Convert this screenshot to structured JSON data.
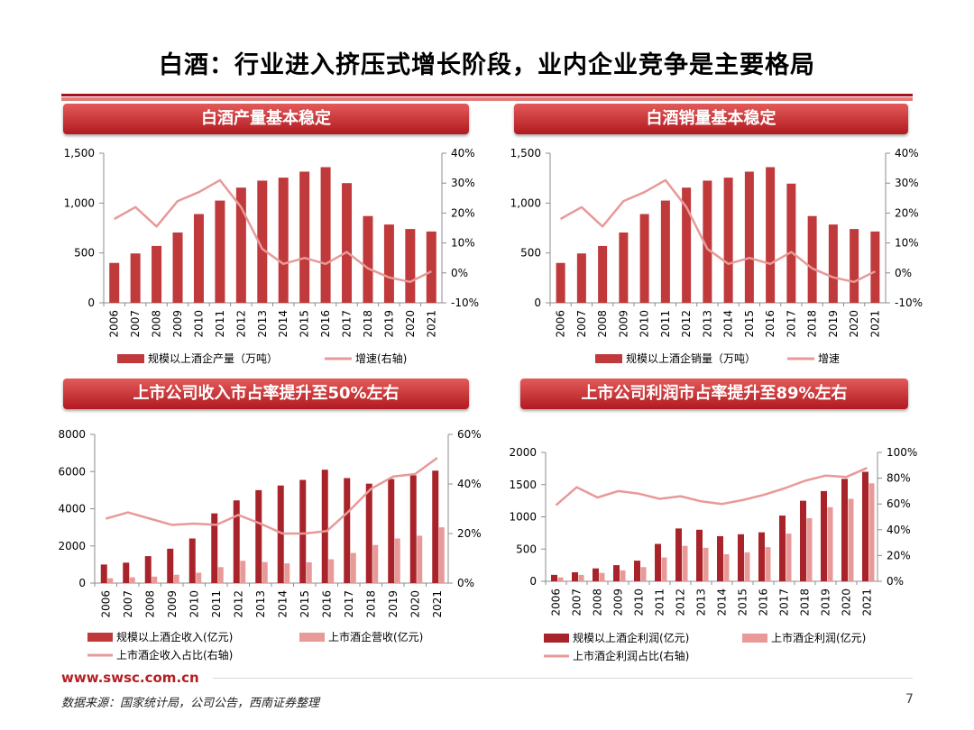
{
  "page": {
    "title": "白酒：行业进入挤压式增长阶段，业内企业竞争是主要格局",
    "footer_url": "www.swsc.com.cn",
    "source": "数据来源：国家统计局，公司公告，西南证券整理",
    "page_number": "7"
  },
  "colors": {
    "bar_dark": "#c0393b",
    "bar_deep": "#a8232a",
    "bar_light": "#e79a98",
    "line": "#e79a98",
    "banner": "#c0282d"
  },
  "banners": {
    "chart1": "白酒产量基本稳定",
    "chart2": "白酒销量基本稳定",
    "chart3": "上市公司收入市占率提升至50%左右",
    "chart4": "上市公司利润市占率提升至89%左右"
  },
  "chart_data": [
    {
      "type": "bar+line",
      "title": "白酒产量基本稳定",
      "categories": [
        "2006",
        "2007",
        "2008",
        "2009",
        "2010",
        "2011",
        "2012",
        "2013",
        "2014",
        "2015",
        "2016",
        "2017",
        "2018",
        "2019",
        "2020",
        "2021"
      ],
      "series": [
        {
          "name": "规模以上酒企产量（万吨）",
          "type": "bar",
          "axis": "left",
          "values": [
            400,
            495,
            570,
            705,
            890,
            1025,
            1155,
            1225,
            1255,
            1315,
            1360,
            1200,
            870,
            785,
            740,
            715
          ]
        },
        {
          "name": "增速(右轴)",
          "type": "line",
          "axis": "right",
          "values": [
            18,
            22,
            15.5,
            24,
            27,
            31,
            22,
            8,
            3,
            5,
            3,
            7,
            1.5,
            -1.5,
            -3,
            0.5
          ]
        }
      ],
      "left_axis": {
        "min": 0,
        "max": 1500,
        "ticks": [
          "0",
          "500",
          "1,000",
          "1,500"
        ],
        "tick_values": [
          0,
          500,
          1000,
          1500
        ]
      },
      "right_axis": {
        "min": -10,
        "max": 40,
        "ticks": [
          "-10%",
          "0%",
          "10%",
          "20%",
          "30%",
          "40%"
        ],
        "tick_values": [
          -10,
          0,
          10,
          20,
          30,
          40
        ]
      },
      "legend": [
        {
          "label": "规模以上酒企产量（万吨）",
          "kind": "bar"
        },
        {
          "label": "增速(右轴)",
          "kind": "line"
        }
      ]
    },
    {
      "type": "bar+line",
      "title": "白酒销量基本稳定",
      "categories": [
        "2006",
        "2007",
        "2008",
        "2009",
        "2010",
        "2011",
        "2012",
        "2013",
        "2014",
        "2015",
        "2016",
        "2017",
        "2018",
        "2019",
        "2020",
        "2021"
      ],
      "series": [
        {
          "name": "规模以上酒企销量（万吨）",
          "type": "bar",
          "axis": "left",
          "values": [
            400,
            495,
            570,
            705,
            890,
            1025,
            1155,
            1225,
            1255,
            1315,
            1360,
            1195,
            870,
            785,
            740,
            715
          ]
        },
        {
          "name": "增速",
          "type": "line",
          "axis": "right",
          "values": [
            18,
            22,
            15.5,
            24,
            27,
            31,
            22,
            8,
            3,
            5,
            3,
            7,
            1.5,
            -1.5,
            -3,
            0.5
          ]
        }
      ],
      "left_axis": {
        "min": 0,
        "max": 1500,
        "ticks": [
          "0",
          "500",
          "1,000",
          "1,500"
        ],
        "tick_values": [
          0,
          500,
          1000,
          1500
        ]
      },
      "right_axis": {
        "min": -10,
        "max": 40,
        "ticks": [
          "-10%",
          "0%",
          "10%",
          "20%",
          "30%",
          "40%"
        ],
        "tick_values": [
          -10,
          0,
          10,
          20,
          30,
          40
        ]
      },
      "legend": [
        {
          "label": "规模以上酒企销量（万吨）",
          "kind": "bar"
        },
        {
          "label": "增速",
          "kind": "line"
        }
      ]
    },
    {
      "type": "bar+line",
      "title": "上市公司收入市占率提升至50%左右",
      "categories": [
        "2006",
        "2007",
        "2008",
        "2009",
        "2010",
        "2011",
        "2012",
        "2013",
        "2014",
        "2015",
        "2016",
        "2017",
        "2018",
        "2019",
        "2020",
        "2021"
      ],
      "series": [
        {
          "name": "规模以上酒企收入(亿元)",
          "type": "bar",
          "axis": "left",
          "values": [
            1000,
            1100,
            1450,
            1850,
            2400,
            3750,
            4450,
            5000,
            5250,
            5550,
            6100,
            5650,
            5350,
            5600,
            5800,
            6050
          ]
        },
        {
          "name": "上市酒企营收(亿元)",
          "type": "bar",
          "axis": "left",
          "values": [
            260,
            310,
            350,
            450,
            560,
            860,
            1200,
            1130,
            1060,
            1120,
            1280,
            1620,
            2050,
            2400,
            2550,
            3000
          ]
        },
        {
          "name": "上市酒企收入占比(右轴)",
          "type": "line",
          "axis": "right",
          "values": [
            26,
            28.5,
            26,
            23.5,
            24,
            23.5,
            27.5,
            24,
            20,
            20,
            21,
            29,
            38,
            43,
            44,
            50.5
          ]
        }
      ],
      "left_axis": {
        "min": 0,
        "max": 8000,
        "ticks": [
          "0",
          "2000",
          "4000",
          "6000",
          "8000"
        ],
        "tick_values": [
          0,
          2000,
          4000,
          6000,
          8000
        ]
      },
      "right_axis": {
        "min": 0,
        "max": 60,
        "ticks": [
          "0%",
          "20%",
          "40%",
          "60%"
        ],
        "tick_values": [
          0,
          20,
          40,
          60
        ]
      },
      "legend": [
        {
          "label": "规模以上酒企收入(亿元)",
          "kind": "bar"
        },
        {
          "label": "上市酒企营收(亿元)",
          "kind": "bar-light"
        },
        {
          "label": "上市酒企收入占比(右轴)",
          "kind": "line"
        }
      ]
    },
    {
      "type": "bar+line",
      "title": "上市公司利润市占率提升至89%左右",
      "categories": [
        "2006",
        "2007",
        "2008",
        "2009",
        "2010",
        "2011",
        "2012",
        "2013",
        "2014",
        "2015",
        "2016",
        "2017",
        "2018",
        "2019",
        "2020",
        "2021"
      ],
      "series": [
        {
          "name": "规模以上酒企利润(亿元)",
          "type": "bar",
          "axis": "left",
          "values": [
            100,
            140,
            200,
            250,
            320,
            580,
            820,
            800,
            700,
            730,
            760,
            1020,
            1250,
            1400,
            1590,
            1700
          ]
        },
        {
          "name": "上市酒企利润(亿元)",
          "type": "bar",
          "axis": "left",
          "values": [
            60,
            100,
            130,
            170,
            220,
            370,
            550,
            520,
            420,
            450,
            530,
            740,
            980,
            1150,
            1280,
            1520
          ]
        },
        {
          "name": "上市酒企利润占比(右轴)",
          "type": "line",
          "axis": "right",
          "values": [
            59,
            73,
            65,
            70,
            68,
            64,
            66,
            62,
            60,
            63,
            67,
            72,
            78,
            82,
            81,
            88
          ]
        }
      ],
      "left_axis": {
        "min": 0,
        "max": 2000,
        "ticks": [
          "0",
          "500",
          "1000",
          "1500",
          "2000"
        ],
        "tick_values": [
          0,
          500,
          1000,
          1500,
          2000
        ]
      },
      "right_axis": {
        "min": 0,
        "max": 100,
        "ticks": [
          "0%",
          "20%",
          "40%",
          "60%",
          "80%",
          "100%"
        ],
        "tick_values": [
          0,
          20,
          40,
          60,
          80,
          100
        ]
      },
      "legend": [
        {
          "label": "规模以上酒企利润(亿元)",
          "kind": "bar-deep"
        },
        {
          "label": "上市酒企利润(亿元)",
          "kind": "bar-light"
        },
        {
          "label": "上市酒企利润占比(右轴)",
          "kind": "line"
        }
      ]
    }
  ]
}
